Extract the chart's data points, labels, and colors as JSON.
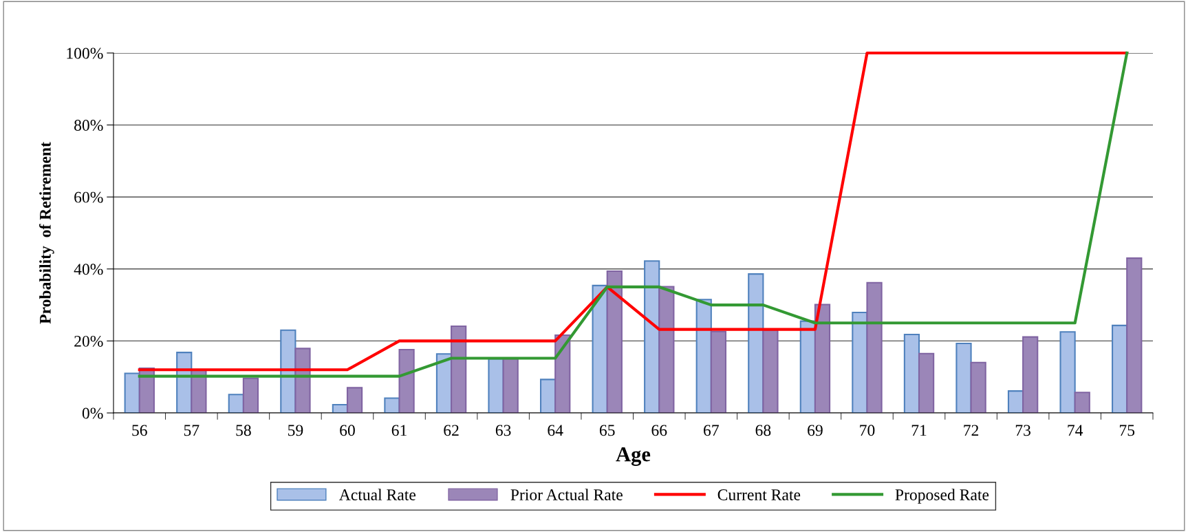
{
  "chart_data": {
    "type": "bar",
    "xlabel": "Age",
    "ylabel": "Probability  of Retirement",
    "categories": [
      "56",
      "57",
      "58",
      "59",
      "60",
      "61",
      "62",
      "63",
      "64",
      "65",
      "66",
      "67",
      "68",
      "69",
      "70",
      "71",
      "72",
      "73",
      "74",
      "75"
    ],
    "series": [
      {
        "name": "Actual Rate",
        "color": "#a9c0e8",
        "values": [
          11.0,
          16.8,
          5.1,
          23.0,
          2.3,
          4.1,
          16.4,
          15,
          9.3,
          35.4,
          42.2,
          31.5,
          38.6,
          25.5,
          27.9,
          21.8,
          19.3,
          6.1,
          22.5,
          24.3
        ]
      },
      {
        "name": "Prior Actual Rate",
        "color": "#9b86b8",
        "values": [
          12.4,
          12,
          9.6,
          17.9,
          7.0,
          17.6,
          24.1,
          15,
          21.6,
          39.4,
          35.1,
          22.6,
          23,
          30.1,
          36.2,
          16.5,
          14.0,
          21.1,
          5.7,
          43.0
        ]
      },
      {
        "name": "Current Rate",
        "type": "line",
        "color": "#ff0000",
        "values": [
          12,
          12,
          12,
          12,
          12,
          20,
          20,
          20,
          20,
          35,
          23.2,
          23.2,
          23.2,
          23.2,
          100,
          100,
          100,
          100,
          100,
          100
        ]
      },
      {
        "name": "Proposed Rate",
        "type": "line",
        "color": "#339933",
        "values": [
          10.2,
          10.2,
          10.2,
          10.2,
          10.2,
          10.2,
          15.2,
          15.2,
          15.2,
          35,
          35,
          30,
          30,
          25,
          25,
          25,
          25,
          25,
          25,
          100
        ]
      }
    ],
    "ylim": [
      0,
      100
    ],
    "yticks": [
      {
        "value": 0,
        "label": "0%"
      },
      {
        "value": 20,
        "label": "20%"
      },
      {
        "value": 40,
        "label": "40%"
      },
      {
        "value": 60,
        "label": "60%"
      },
      {
        "value": 80,
        "label": "80%"
      },
      {
        "value": 100,
        "label": "100%"
      }
    ],
    "grid": "y",
    "legend": "bottom",
    "marker": "none",
    "line_style": "solid"
  }
}
